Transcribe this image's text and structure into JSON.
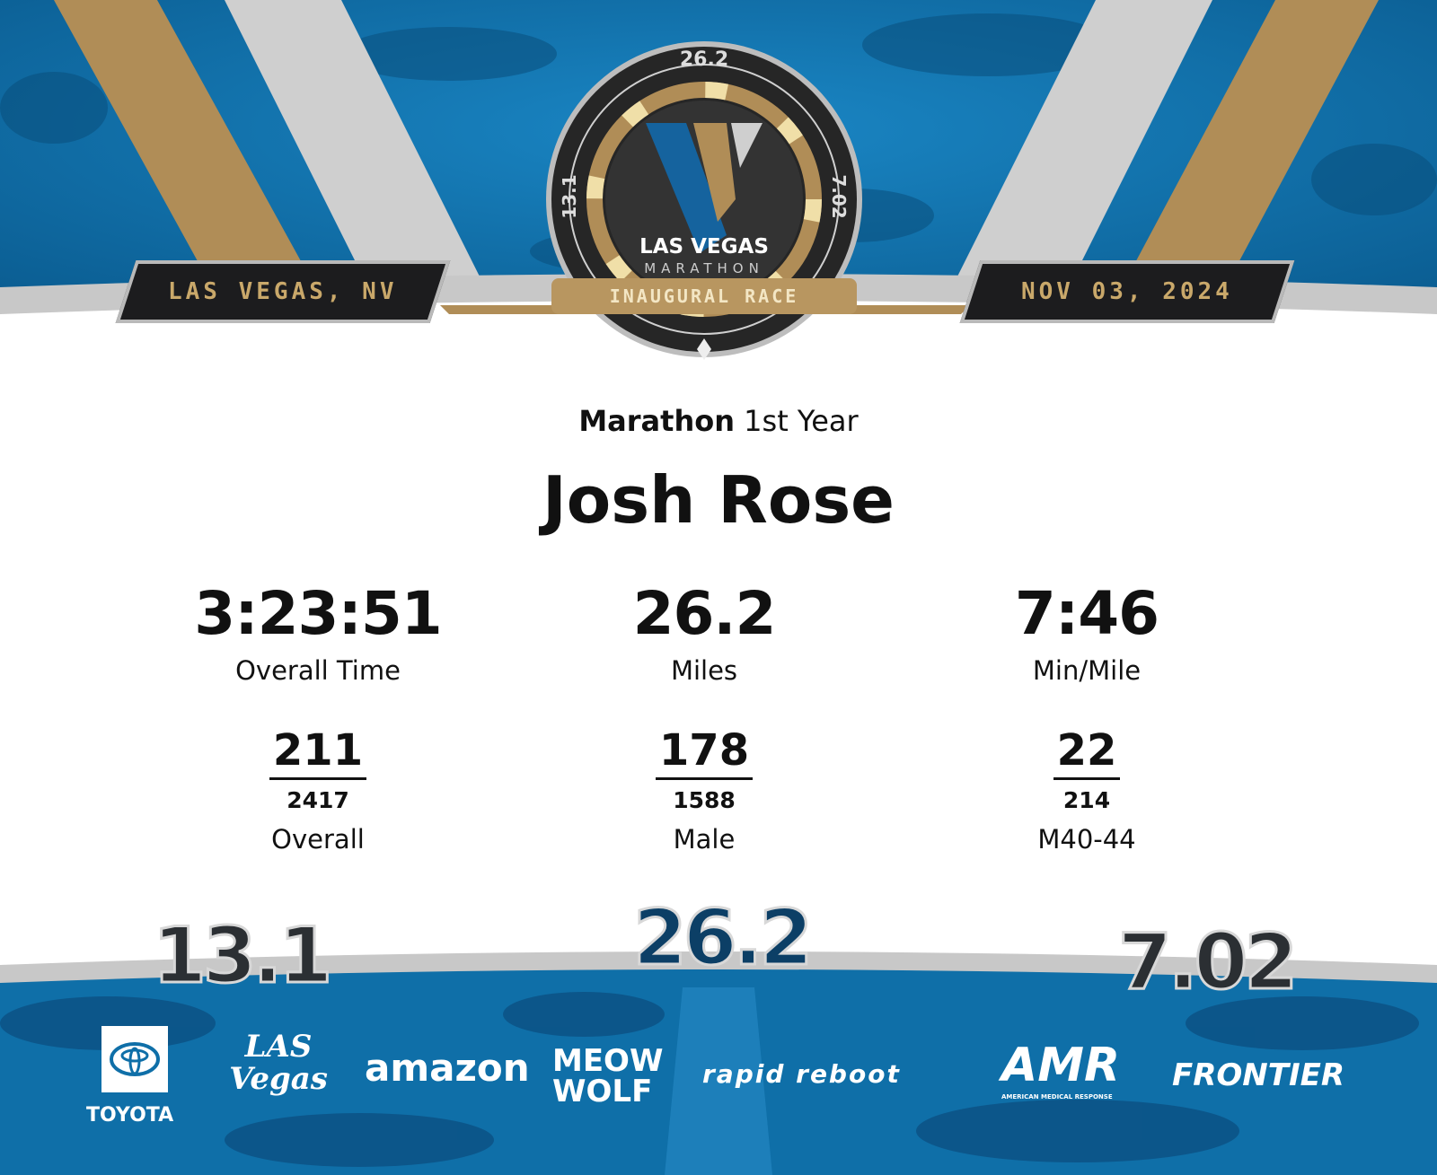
{
  "header": {
    "location": "LAS VEGAS, NV",
    "date": "NOV 03, 2024",
    "medal": {
      "top_label": "26.2",
      "left_label": "13.1",
      "right_label": "7.02",
      "title": "LAS VEGAS",
      "subtitle": "MARATHON",
      "ribbon": "INAUGURAL RACE"
    },
    "colors": {
      "blue": "#0f6fa8",
      "gold": "#b08d57",
      "silver": "#c9c9c9",
      "dark": "#1c1c1e"
    }
  },
  "result": {
    "race": "Marathon",
    "year_tag": "1st Year",
    "runner_name": "Josh Rose",
    "stats": [
      {
        "value": "3:23:51",
        "label": "Overall Time"
      },
      {
        "value": "26.2",
        "label": "Miles"
      },
      {
        "value": "7:46",
        "label": "Min/Mile"
      }
    ],
    "ranks": [
      {
        "place": "211",
        "total": "2417",
        "category": "Overall"
      },
      {
        "place": "178",
        "total": "1588",
        "category": "Male"
      },
      {
        "place": "22",
        "total": "214",
        "category": "M40-44"
      }
    ]
  },
  "footer": {
    "distances": [
      "13.1",
      "26.2",
      "7.02"
    ],
    "sponsors": [
      "TOYOTA",
      "LAS Vegas",
      "amazon",
      "MEOW WOLF",
      "rapid reboot",
      "AMR",
      "AMERICAN MEDICAL RESPONSE",
      "FRONTIER"
    ]
  }
}
